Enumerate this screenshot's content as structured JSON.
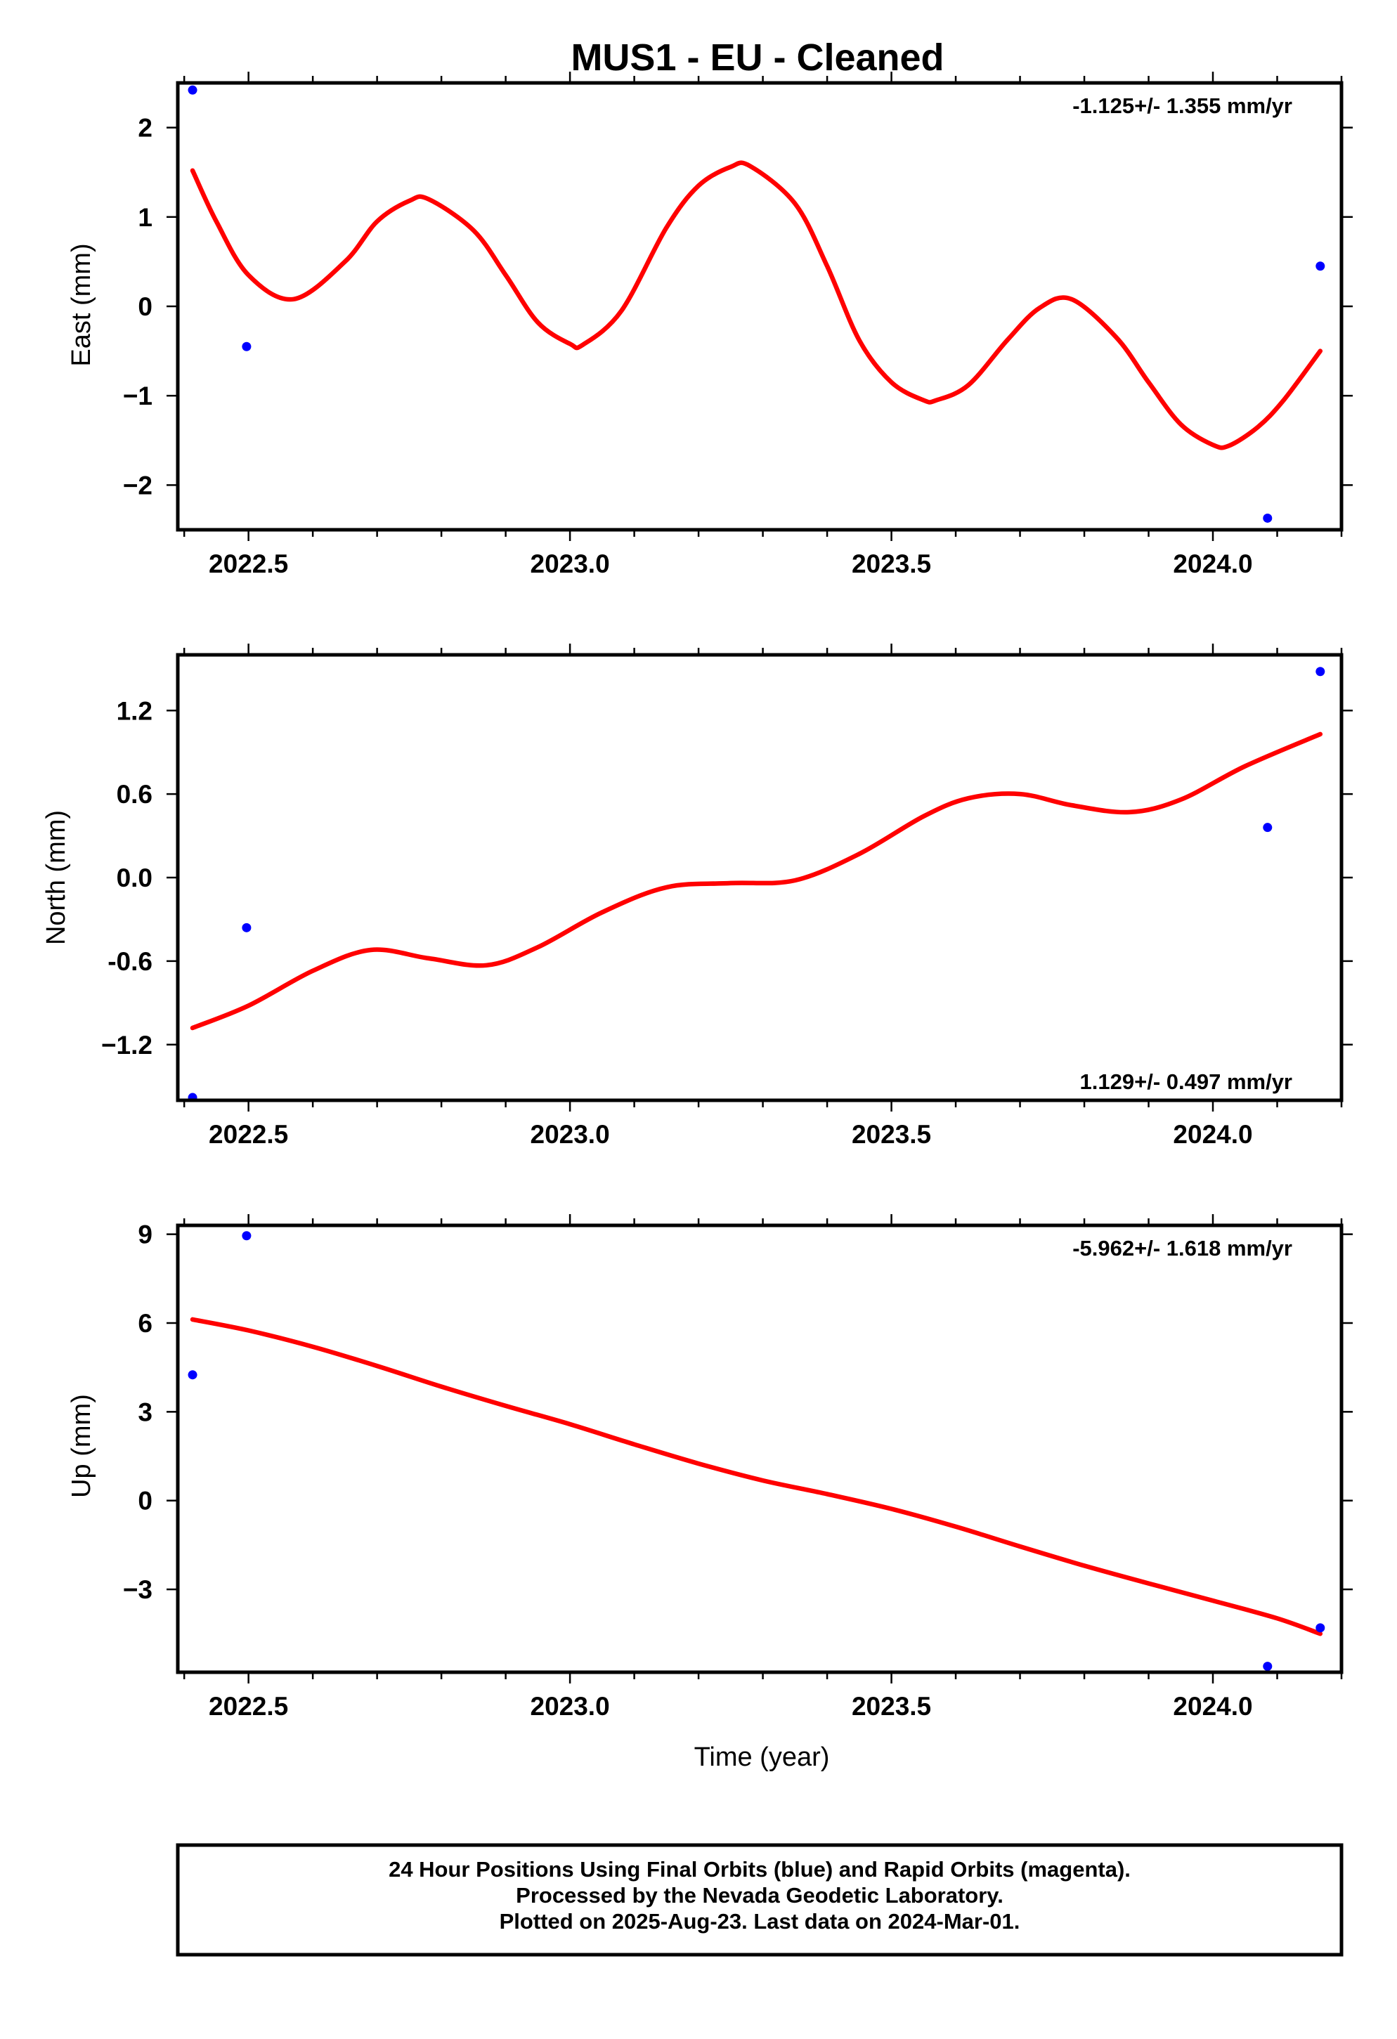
{
  "title": "MUS1  - EU - Cleaned",
  "colors": {
    "final_orbits": "#0000ff",
    "rapid_orbits": "#ff00ff",
    "model": "#ff0000",
    "frame": "#000000",
    "background": "#ffffff"
  },
  "xlabel": "Time (year)",
  "footer": {
    "line1": "24 Hour Positions Using Final Orbits (blue) and Rapid Orbits (magenta).",
    "line2": "Processed by the Nevada Geodetic Laboratory.",
    "line3": "Plotted on 2025-Aug-23. Last data on 2024-Mar-01."
  },
  "chart_data": [
    {
      "type": "scatter",
      "panel": "east",
      "ylabel": "East (mm)",
      "rate": "-1.125+/- 1.355 mm/yr",
      "rate_position": "top-right",
      "xlim": [
        2022.39,
        2024.2
      ],
      "ylim": [
        -2.5,
        2.5
      ],
      "xticks": [
        2022.5,
        2023.0,
        2023.5,
        2024.0
      ],
      "xtick_labels": [
        "2022.5",
        "2023.0",
        "2023.5",
        "2024.0"
      ],
      "yticks": [
        2,
        1,
        0,
        -1,
        -2
      ],
      "ytick_labels": [
        "2",
        "1",
        "0",
        "−1",
        "−2"
      ],
      "grid": false,
      "series": [
        {
          "role": "final-orbits",
          "x": [
            2022.413,
            2022.497,
            2024.085,
            2024.167
          ],
          "y": [
            2.42,
            -0.45,
            -2.37,
            0.45
          ]
        },
        {
          "role": "model",
          "x": [
            2022.413,
            2022.45,
            2022.5,
            2022.57,
            2022.65,
            2022.7,
            2022.75,
            2022.78,
            2022.85,
            2022.9,
            2022.95,
            2023.0,
            2023.02,
            2023.08,
            2023.15,
            2023.2,
            2023.25,
            2023.28,
            2023.35,
            2023.4,
            2023.45,
            2023.5,
            2023.55,
            2023.57,
            2023.62,
            2023.68,
            2023.73,
            2023.78,
            2023.85,
            2023.9,
            2023.95,
            2024.0,
            2024.025,
            2024.07,
            2024.11,
            2024.167
          ],
          "y": [
            1.52,
            0.95,
            0.35,
            0.08,
            0.5,
            0.95,
            1.18,
            1.2,
            0.85,
            0.35,
            -0.18,
            -0.42,
            -0.43,
            -0.05,
            0.88,
            1.35,
            1.56,
            1.57,
            1.15,
            0.45,
            -0.38,
            -0.85,
            -1.05,
            -1.05,
            -0.88,
            -0.38,
            -0.02,
            0.08,
            -0.35,
            -0.85,
            -1.32,
            -1.55,
            -1.56,
            -1.35,
            -1.05,
            -0.5
          ]
        }
      ]
    },
    {
      "type": "scatter",
      "panel": "north",
      "ylabel": "North (mm)",
      "rate": "1.129+/- 0.497 mm/yr",
      "rate_position": "bottom-right",
      "xlim": [
        2022.39,
        2024.2
      ],
      "ylim": [
        -1.6,
        1.6
      ],
      "xticks": [
        2022.5,
        2023.0,
        2023.5,
        2024.0
      ],
      "xtick_labels": [
        "2022.5",
        "2023.0",
        "2023.5",
        "2024.0"
      ],
      "yticks": [
        1.2,
        0.6,
        0.0,
        -0.6,
        -1.2
      ],
      "ytick_labels": [
        "1.2",
        "0.6",
        "0.0",
        "-0.6",
        "−1.2"
      ],
      "grid": false,
      "series": [
        {
          "role": "final-orbits",
          "x": [
            2022.413,
            2022.497,
            2024.085,
            2024.167
          ],
          "y": [
            -1.58,
            -0.36,
            0.36,
            1.48
          ]
        },
        {
          "role": "model",
          "x": [
            2022.413,
            2022.5,
            2022.6,
            2022.69,
            2022.78,
            2022.87,
            2022.95,
            2023.05,
            2023.15,
            2023.25,
            2023.35,
            2023.45,
            2023.55,
            2023.62,
            2023.7,
            2023.78,
            2023.87,
            2023.95,
            2024.05,
            2024.167
          ],
          "y": [
            -1.08,
            -0.92,
            -0.67,
            -0.52,
            -0.58,
            -0.63,
            -0.5,
            -0.25,
            -0.07,
            -0.04,
            -0.02,
            0.17,
            0.44,
            0.57,
            0.6,
            0.52,
            0.47,
            0.56,
            0.8,
            1.03
          ]
        }
      ]
    },
    {
      "type": "scatter",
      "panel": "up",
      "ylabel": "Up (mm)",
      "rate": "-5.962+/- 1.618 mm/yr",
      "rate_position": "top-right",
      "xlim": [
        2022.39,
        2024.2
      ],
      "ylim": [
        -5.8,
        9.3
      ],
      "xticks": [
        2022.5,
        2023.0,
        2023.5,
        2024.0
      ],
      "xtick_labels": [
        "2022.5",
        "2023.0",
        "2023.5",
        "2024.0"
      ],
      "yticks": [
        9,
        6,
        3,
        0,
        -3
      ],
      "ytick_labels": [
        "9",
        "6",
        "3",
        "0",
        "−3"
      ],
      "grid": false,
      "series": [
        {
          "role": "final-orbits",
          "x": [
            2022.413,
            2022.497,
            2024.085,
            2024.167
          ],
          "y": [
            4.25,
            8.95,
            -5.6,
            -4.3
          ]
        },
        {
          "role": "model",
          "x": [
            2022.413,
            2022.5,
            2022.6,
            2022.7,
            2022.8,
            2022.9,
            2023.0,
            2023.1,
            2023.2,
            2023.3,
            2023.4,
            2023.5,
            2023.6,
            2023.7,
            2023.8,
            2023.9,
            2024.0,
            2024.1,
            2024.167
          ],
          "y": [
            6.12,
            5.75,
            5.2,
            4.55,
            3.85,
            3.2,
            2.58,
            1.9,
            1.25,
            0.68,
            0.22,
            -0.28,
            -0.88,
            -1.55,
            -2.2,
            -2.8,
            -3.38,
            -3.98,
            -4.5
          ]
        }
      ]
    }
  ]
}
